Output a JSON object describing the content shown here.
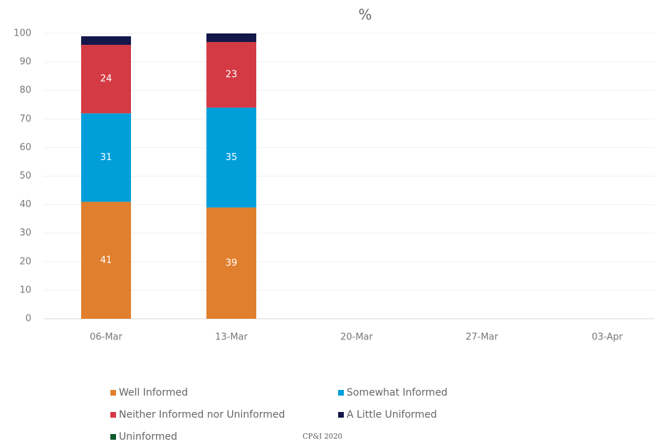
{
  "chart_data": {
    "type": "stacked_bar",
    "title": "%",
    "categories": [
      "06-Mar",
      "13-Mar",
      "20-Mar",
      "27-Mar",
      "03-Apr"
    ],
    "series": [
      {
        "name": "Well Informed",
        "color": "#e07f2e",
        "values": [
          41,
          39,
          null,
          null,
          null
        ],
        "data_labels": true
      },
      {
        "name": "Somewhat Informed",
        "color": "#009fda",
        "values": [
          31,
          35,
          null,
          null,
          null
        ],
        "data_labels": true
      },
      {
        "name": "Neither Informed nor Uninformed",
        "color": "#d43a43",
        "values": [
          24,
          23,
          null,
          null,
          null
        ],
        "data_labels": true
      },
      {
        "name": "A Little Uniformed",
        "color": "#14174a",
        "values": [
          3,
          3,
          null,
          null,
          null
        ],
        "data_labels": false
      },
      {
        "name": "Uninformed",
        "color": "#0c5a2c",
        "values": [
          0,
          0,
          null,
          null,
          null
        ],
        "data_labels": false
      }
    ],
    "ylim": [
      0,
      100
    ],
    "yticks": [
      0,
      10,
      20,
      30,
      40,
      50,
      60,
      70,
      80,
      90,
      100
    ],
    "grid": true,
    "footnote": "CP&I 2020"
  }
}
